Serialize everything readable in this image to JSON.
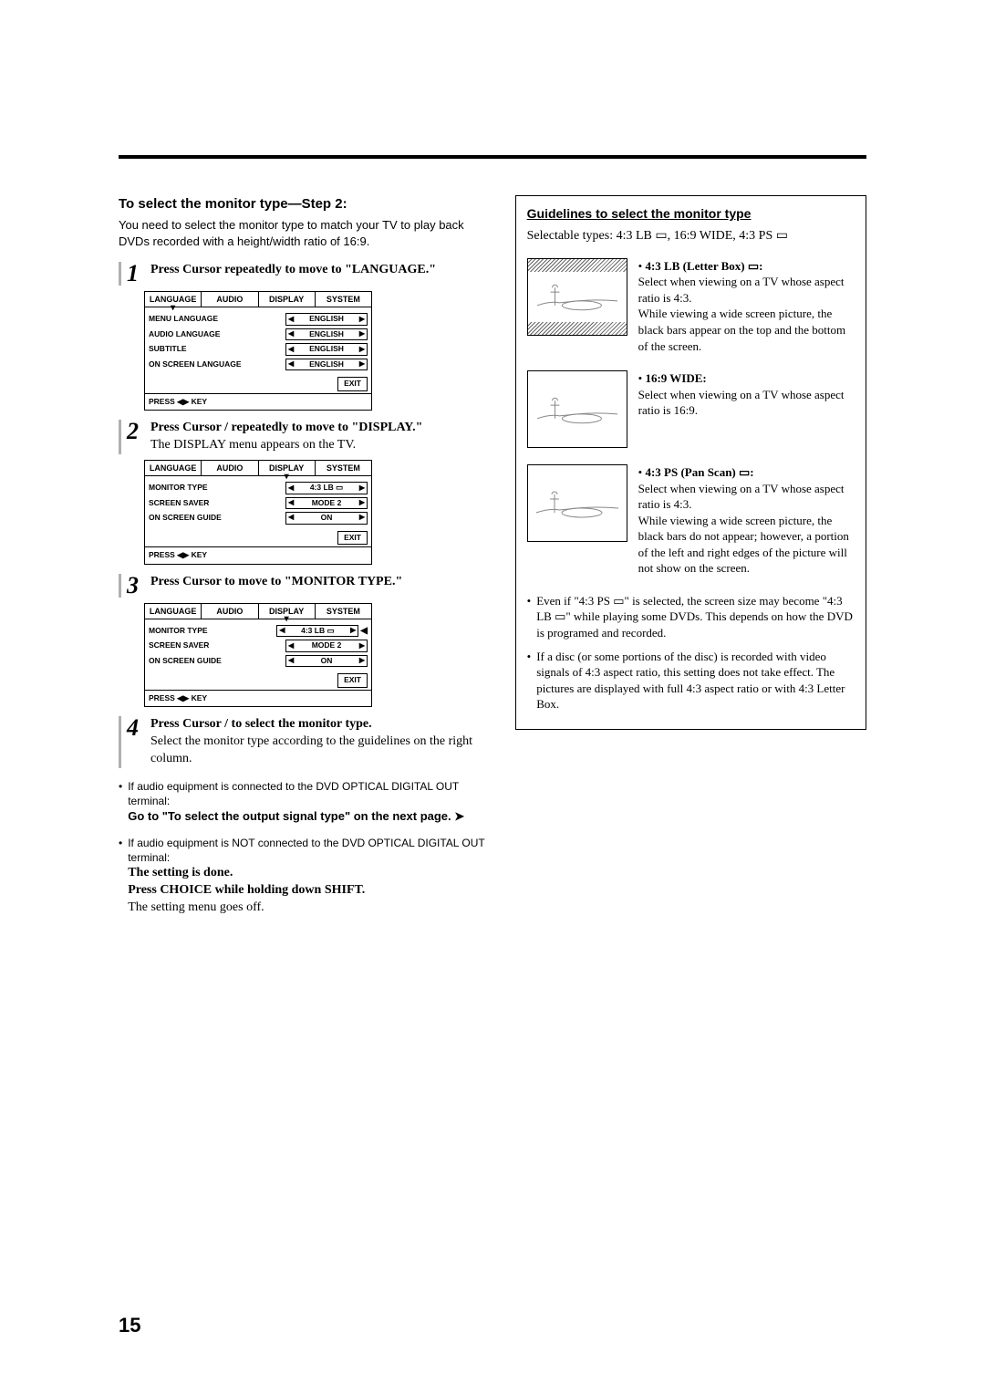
{
  "page_number": "15",
  "left": {
    "section_title": "To select the monitor type—Step 2:",
    "intro": "You need to select the monitor type to match your TV to play back DVDs recorded with a height/width ratio of 16:9.",
    "steps": [
      {
        "num": "1",
        "instruction_pre": "Press Cursor ",
        "instruction_mid": " repeatedly to move ",
        "instruction_post": " to \"LANGUAGE.\"",
        "menu": {
          "tabs": [
            "LANGUAGE",
            "AUDIO",
            "DISPLAY",
            "SYSTEM"
          ],
          "active_tab": 0,
          "rows": [
            {
              "label": "MENU LANGUAGE",
              "value": "ENGLISH"
            },
            {
              "label": "AUDIO LANGUAGE",
              "value": "ENGLISH"
            },
            {
              "label": "SUBTITLE",
              "value": "ENGLISH"
            },
            {
              "label": "ON SCREEN LANGUAGE",
              "value": "ENGLISH"
            }
          ],
          "exit": "EXIT",
          "footer": "PRESS ◀▶ KEY"
        }
      },
      {
        "num": "2",
        "instruction_pre": "Press Cursor ",
        "instruction_mid": " / ",
        "instruction_mid2": " repeatedly to move ",
        "instruction_post": " to \"DISPLAY.\"",
        "note": "The DISPLAY menu appears on the TV.",
        "menu": {
          "tabs": [
            "LANGUAGE",
            "AUDIO",
            "DISPLAY",
            "SYSTEM"
          ],
          "active_tab": 2,
          "rows": [
            {
              "label": "MONITOR TYPE",
              "value": "4:3 LB ▭"
            },
            {
              "label": "SCREEN SAVER",
              "value": "MODE 2"
            },
            {
              "label": "ON SCREEN GUIDE",
              "value": "ON"
            }
          ],
          "exit": "EXIT",
          "footer": "PRESS ◀▶ KEY"
        }
      },
      {
        "num": "3",
        "instruction_pre": "Press Cursor ",
        "instruction_mid": " to move ",
        "instruction_post": " to \"MONITOR TYPE.\"",
        "menu": {
          "tabs": [
            "LANGUAGE",
            "AUDIO",
            "DISPLAY",
            "SYSTEM"
          ],
          "active_tab": 2,
          "rows": [
            {
              "label": "MONITOR TYPE",
              "value": "4:3 LB ▭",
              "highlighted": true
            },
            {
              "label": "SCREEN SAVER",
              "value": "MODE 2"
            },
            {
              "label": "ON SCREEN GUIDE",
              "value": "ON"
            }
          ],
          "exit": "EXIT",
          "footer": "PRESS ◀▶ KEY"
        }
      },
      {
        "num": "4",
        "instruction_pre": "Press Cursor ",
        "instruction_mid": " / ",
        "instruction_post": " to select the monitor type.",
        "note": "Select the monitor type according to the guidelines on the right column."
      }
    ],
    "bullets": [
      {
        "cond": "If audio equipment is connected to the DVD OPTICAL DIGITAL OUT terminal:",
        "action": "Go to \"To select the output signal type\" on the next page. "
      },
      {
        "cond": "If audio equipment is NOT connected to the DVD OPTICAL DIGITAL OUT terminal:",
        "action_lines": [
          "The setting is done.",
          "Press CHOICE while holding down SHIFT."
        ],
        "tail": "The setting menu goes off."
      }
    ]
  },
  "right": {
    "guidelines_title": "Guidelines to select the monitor type",
    "selectable": "Selectable types: 4:3 LB ▭, 16:9 WIDE, 4:3 PS ▭",
    "types": [
      {
        "title": "4:3 LB (Letter Box) ▭:",
        "body": "Select when viewing on a TV whose aspect ratio is 4:3.\nWhile viewing a wide screen picture, the black bars appear on the top and the bottom of the screen.",
        "style": "letterbox"
      },
      {
        "title": "16:9 WIDE:",
        "body": "Select when viewing on a TV whose aspect ratio is 16:9.",
        "style": "wide"
      },
      {
        "title": "4:3 PS (Pan Scan) ▭:",
        "body": "Select when viewing on a TV whose aspect ratio is 4:3.\nWhile viewing a wide screen picture, the black bars do not appear; however, a portion of the left and right edges of the picture will not show on the screen.",
        "style": "panscan"
      }
    ],
    "notes": [
      "Even if \"4:3 PS ▭\" is selected, the screen size may become \"4:3 LB ▭\" while playing some DVDs. This depends on how the DVD is programed and recorded.",
      "If a disc (or some portions of the disc) is recorded with video signals of 4:3 aspect ratio, this setting does not take effect. The pictures are displayed with full 4:3 aspect ratio or with 4:3 Letter Box."
    ]
  }
}
